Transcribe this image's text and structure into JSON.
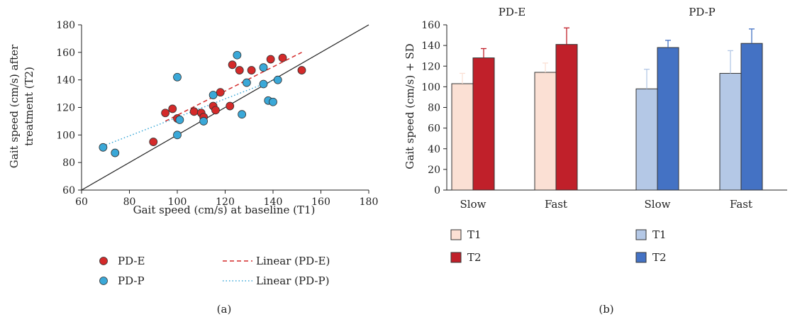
{
  "chart_data": [
    {
      "panel": "(a)",
      "type": "scatter",
      "xlabel": "Gait speed (cm/s) at baseline (T1)",
      "ylabel_lines": [
        "Gait speed (cm/s) after",
        "treatment (T2)"
      ],
      "xlim": [
        60,
        180
      ],
      "ylim": [
        60,
        180
      ],
      "xticks": [
        "60",
        "80",
        "100",
        "120",
        "140",
        "160",
        "180"
      ],
      "yticks": [
        "60",
        "80",
        "100",
        "120",
        "140",
        "160",
        "180"
      ],
      "grid": false,
      "legend_position": "bottom",
      "series": [
        {
          "name": "PD-E",
          "color": "#d42a2a",
          "points": [
            [
              90,
              95
            ],
            [
              95,
              116
            ],
            [
              98,
              119
            ],
            [
              100,
              112
            ],
            [
              107,
              117
            ],
            [
              110,
              116
            ],
            [
              111,
              113
            ],
            [
              115,
              121
            ],
            [
              116,
              118
            ],
            [
              118,
              131
            ],
            [
              122,
              121
            ],
            [
              123,
              151
            ],
            [
              126,
              147
            ],
            [
              131,
              147
            ],
            [
              139,
              155
            ],
            [
              144,
              156
            ],
            [
              152,
              147
            ]
          ]
        },
        {
          "name": "PD-P",
          "color": "#3aa8d8",
          "points": [
            [
              69,
              91
            ],
            [
              74,
              87
            ],
            [
              100,
              142
            ],
            [
              100,
              100
            ],
            [
              101,
              111
            ],
            [
              111,
              110
            ],
            [
              115,
              129
            ],
            [
              125,
              158
            ],
            [
              127,
              115
            ],
            [
              129,
              138
            ],
            [
              136,
              137
            ],
            [
              136,
              149
            ],
            [
              138,
              125
            ],
            [
              140,
              124
            ],
            [
              142,
              140
            ]
          ]
        }
      ],
      "lines": [
        {
          "name": "identity",
          "from": [
            60,
            60
          ],
          "to": [
            180,
            180
          ],
          "color": "#222222",
          "style": "solid"
        },
        {
          "name": "Linear (PD-E)",
          "from": [
            95,
            110
          ],
          "to": [
            152,
            160
          ],
          "color": "#d42a2a",
          "style": "dashed"
        },
        {
          "name": "Linear (PD-P)",
          "from": [
            69,
            92
          ],
          "to": [
            142,
            141
          ],
          "color": "#3aa8d8",
          "style": "dotted"
        }
      ],
      "legend": [
        "PD-E",
        "PD-P",
        "Linear (PD-E)",
        "Linear (PD-P)"
      ]
    },
    {
      "panel": "(b)",
      "type": "bar",
      "ylabel": "Gait speed (cm/s) + SD",
      "ylim": [
        0,
        160
      ],
      "yticks": [
        "0",
        "20",
        "40",
        "60",
        "80",
        "100",
        "120",
        "140",
        "160"
      ],
      "grid": false,
      "groups": [
        {
          "title": "PD-E",
          "categories": [
            "Slow",
            "Fast"
          ],
          "series": [
            {
              "name": "T1",
              "color": "#fbe0d4",
              "values": [
                103,
                114
              ],
              "sd": [
                10,
                9
              ]
            },
            {
              "name": "T2",
              "color": "#c0202a",
              "values": [
                128,
                141
              ],
              "sd": [
                9,
                16
              ]
            }
          ]
        },
        {
          "title": "PD-P",
          "categories": [
            "Slow",
            "Fast"
          ],
          "series": [
            {
              "name": "T1",
              "color": "#b4c8e6",
              "values": [
                98,
                113
              ],
              "sd": [
                19,
                22
              ]
            },
            {
              "name": "T2",
              "color": "#4472c4",
              "values": [
                138,
                142
              ],
              "sd": [
                7,
                14
              ]
            }
          ]
        }
      ],
      "legend_position": "bottom"
    }
  ],
  "captions": {
    "a": "(a)",
    "b": "(b)"
  }
}
